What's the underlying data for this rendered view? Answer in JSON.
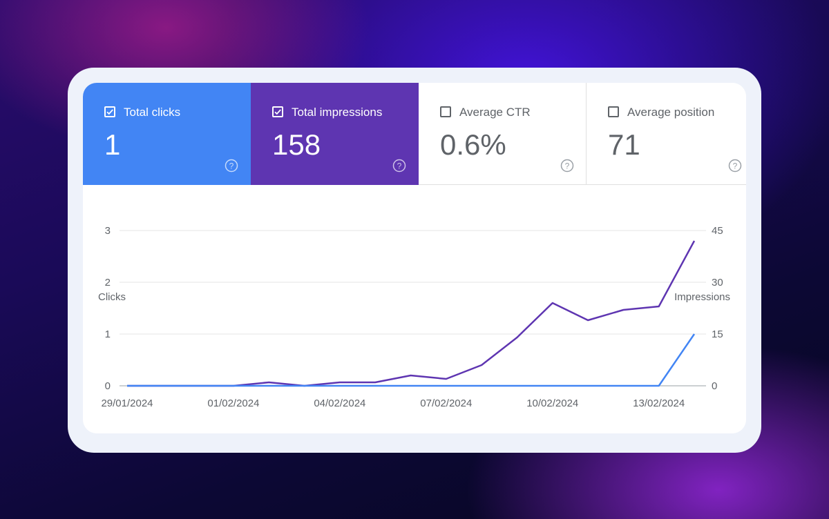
{
  "metrics": [
    {
      "label": "Total clicks",
      "value": "1",
      "checked": true
    },
    {
      "label": "Total impressions",
      "value": "158",
      "checked": true
    },
    {
      "label": "Average CTR",
      "value": "0.6%",
      "checked": false
    },
    {
      "label": "Average position",
      "value": "71",
      "checked": false
    }
  ],
  "colors": {
    "clicks": "#4285f4",
    "impressions": "#5e35b1"
  },
  "chart_data": {
    "type": "line",
    "categories": [
      "29/01/2024",
      "30/01/2024",
      "31/01/2024",
      "01/02/2024",
      "02/02/2024",
      "03/02/2024",
      "04/02/2024",
      "05/02/2024",
      "06/02/2024",
      "07/02/2024",
      "08/02/2024",
      "09/02/2024",
      "10/02/2024",
      "11/02/2024",
      "12/02/2024",
      "13/02/2024",
      "14/02/2024"
    ],
    "x_tick_labels": [
      "29/01/2024",
      "01/02/2024",
      "04/02/2024",
      "07/02/2024",
      "10/02/2024",
      "13/02/2024"
    ],
    "x_tick_indices": [
      0,
      3,
      6,
      9,
      12,
      15
    ],
    "series": [
      {
        "name": "Clicks",
        "axis": "left",
        "color": "#4285f4",
        "values": [
          0,
          0,
          0,
          0,
          0,
          0,
          0,
          0,
          0,
          0,
          0,
          0,
          0,
          0,
          0,
          0,
          1
        ]
      },
      {
        "name": "Impressions",
        "axis": "right",
        "color": "#5e35b1",
        "values": [
          0,
          0,
          0,
          0,
          1,
          0,
          1,
          1,
          3,
          2,
          6,
          14,
          24,
          19,
          22,
          23,
          42
        ]
      }
    ],
    "left_axis": {
      "label": "Clicks",
      "ticks": [
        "0",
        "1",
        "2",
        "3"
      ],
      "max": 3
    },
    "right_axis": {
      "label": "Impressions",
      "ticks": [
        "0",
        "15",
        "30",
        "45"
      ],
      "max": 45
    }
  }
}
